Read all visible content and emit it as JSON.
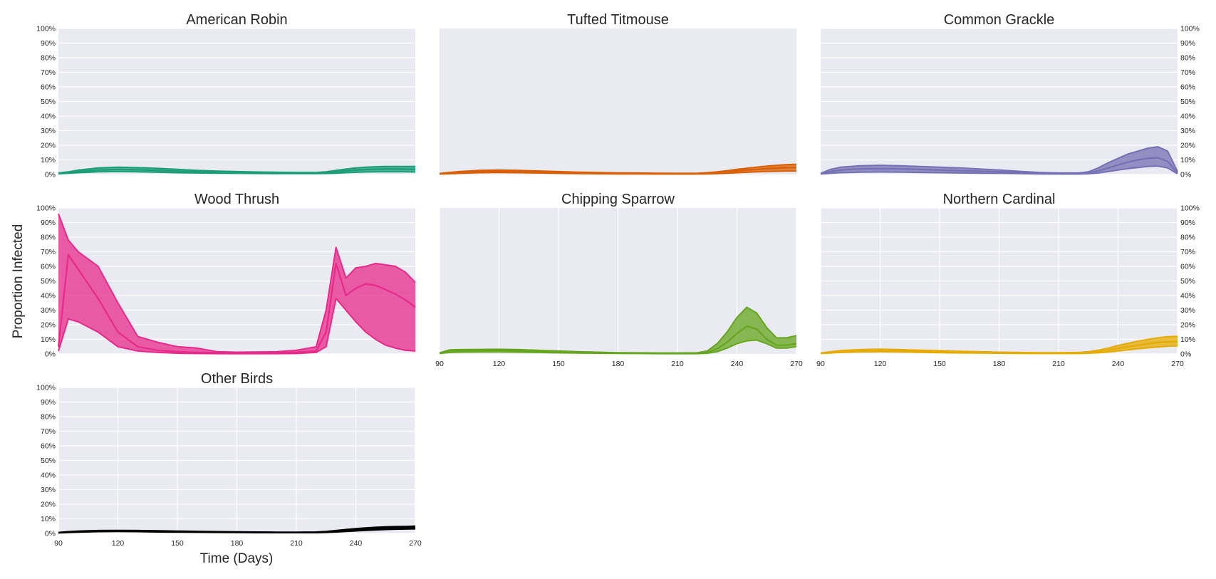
{
  "chart_data": {
    "type": "area",
    "ylabel": "Proportion Infected",
    "xlabel": "Time (Days)",
    "x_ticks": [
      90,
      120,
      150,
      180,
      210,
      240,
      270
    ],
    "y_ticks": [
      "0%",
      "10%",
      "20%",
      "30%",
      "40%",
      "50%",
      "60%",
      "70%",
      "80%",
      "90%",
      "100%"
    ],
    "xlim": [
      90,
      270
    ],
    "ylim": [
      0,
      1
    ],
    "grid": true,
    "x": [
      90,
      95,
      100,
      110,
      120,
      130,
      140,
      150,
      160,
      170,
      180,
      190,
      200,
      210,
      220,
      225,
      230,
      235,
      240,
      245,
      250,
      255,
      260,
      265,
      270
    ],
    "panels": [
      {
        "title": "American Robin",
        "color": "#1b9e77",
        "yticks_side": "left",
        "show_xticks": false,
        "lower": [
          0.005,
          0.008,
          0.012,
          0.018,
          0.02,
          0.018,
          0.015,
          0.012,
          0.01,
          0.009,
          0.008,
          0.007,
          0.006,
          0.006,
          0.006,
          0.007,
          0.009,
          0.012,
          0.015,
          0.017,
          0.018,
          0.018,
          0.018,
          0.018,
          0.017
        ],
        "median": [
          0.007,
          0.012,
          0.02,
          0.03,
          0.035,
          0.032,
          0.028,
          0.023,
          0.019,
          0.016,
          0.014,
          0.012,
          0.011,
          0.01,
          0.01,
          0.012,
          0.018,
          0.025,
          0.03,
          0.034,
          0.036,
          0.037,
          0.037,
          0.036,
          0.035
        ],
        "upper": [
          0.01,
          0.018,
          0.03,
          0.045,
          0.05,
          0.047,
          0.042,
          0.035,
          0.028,
          0.023,
          0.02,
          0.017,
          0.015,
          0.014,
          0.014,
          0.018,
          0.028,
          0.037,
          0.045,
          0.05,
          0.053,
          0.055,
          0.055,
          0.055,
          0.055
        ]
      },
      {
        "title": "Tufted Titmouse",
        "color": "#d95f02",
        "yticks_side": "none",
        "show_xticks": false,
        "lower": [
          0.003,
          0.005,
          0.008,
          0.012,
          0.013,
          0.012,
          0.01,
          0.008,
          0.006,
          0.005,
          0.004,
          0.004,
          0.003,
          0.003,
          0.003,
          0.004,
          0.006,
          0.009,
          0.012,
          0.015,
          0.018,
          0.02,
          0.022,
          0.023,
          0.024
        ],
        "median": [
          0.005,
          0.01,
          0.015,
          0.02,
          0.022,
          0.02,
          0.017,
          0.014,
          0.011,
          0.009,
          0.008,
          0.007,
          0.006,
          0.006,
          0.006,
          0.008,
          0.012,
          0.018,
          0.024,
          0.03,
          0.035,
          0.04,
          0.044,
          0.047,
          0.048
        ],
        "upper": [
          0.007,
          0.014,
          0.02,
          0.028,
          0.03,
          0.028,
          0.024,
          0.02,
          0.016,
          0.013,
          0.011,
          0.01,
          0.009,
          0.008,
          0.009,
          0.012,
          0.018,
          0.026,
          0.035,
          0.043,
          0.05,
          0.057,
          0.063,
          0.068,
          0.07
        ]
      },
      {
        "title": "Common Grackle",
        "color": "#7570b3",
        "yticks_side": "right",
        "show_xticks": false,
        "lower": [
          0.003,
          0.008,
          0.012,
          0.016,
          0.017,
          0.016,
          0.014,
          0.012,
          0.01,
          0.009,
          0.008,
          0.006,
          0.004,
          0.003,
          0.003,
          0.005,
          0.01,
          0.02,
          0.03,
          0.04,
          0.048,
          0.055,
          0.058,
          0.045,
          0.005
        ],
        "median": [
          0.005,
          0.02,
          0.03,
          0.038,
          0.04,
          0.038,
          0.034,
          0.03,
          0.026,
          0.022,
          0.018,
          0.014,
          0.009,
          0.006,
          0.006,
          0.01,
          0.025,
          0.045,
          0.065,
          0.085,
          0.1,
          0.11,
          0.115,
          0.09,
          0.01
        ],
        "upper": [
          0.008,
          0.035,
          0.05,
          0.06,
          0.063,
          0.06,
          0.055,
          0.05,
          0.045,
          0.038,
          0.03,
          0.022,
          0.014,
          0.01,
          0.01,
          0.018,
          0.045,
          0.08,
          0.11,
          0.14,
          0.16,
          0.18,
          0.19,
          0.16,
          0.02
        ]
      },
      {
        "title": "Wood Thrush",
        "color": "#e7298a",
        "yticks_side": "left",
        "show_xticks": false,
        "lower": [
          0.02,
          0.24,
          0.22,
          0.15,
          0.05,
          0.02,
          0.01,
          0.005,
          0.003,
          0.002,
          0.002,
          0.002,
          0.002,
          0.003,
          0.01,
          0.05,
          0.38,
          0.3,
          0.22,
          0.15,
          0.1,
          0.06,
          0.04,
          0.025,
          0.02
        ],
        "median": [
          0.05,
          0.68,
          0.58,
          0.38,
          0.15,
          0.05,
          0.025,
          0.015,
          0.01,
          0.008,
          0.007,
          0.007,
          0.008,
          0.01,
          0.02,
          0.15,
          0.62,
          0.4,
          0.45,
          0.48,
          0.47,
          0.44,
          0.41,
          0.37,
          0.32
        ],
        "upper": [
          0.96,
          0.78,
          0.7,
          0.6,
          0.35,
          0.12,
          0.08,
          0.05,
          0.04,
          0.015,
          0.012,
          0.013,
          0.015,
          0.025,
          0.05,
          0.3,
          0.73,
          0.52,
          0.59,
          0.6,
          0.62,
          0.61,
          0.6,
          0.56,
          0.49
        ]
      },
      {
        "title": "Chipping Sparrow",
        "color": "#66a61e",
        "yticks_side": "none",
        "show_xticks": true,
        "lower": [
          0.003,
          0.01,
          0.012,
          0.013,
          0.014,
          0.012,
          0.01,
          0.008,
          0.006,
          0.005,
          0.004,
          0.003,
          0.002,
          0.002,
          0.002,
          0.005,
          0.015,
          0.04,
          0.07,
          0.09,
          0.095,
          0.07,
          0.04,
          0.04,
          0.05
        ],
        "median": [
          0.005,
          0.018,
          0.02,
          0.021,
          0.022,
          0.02,
          0.016,
          0.013,
          0.01,
          0.008,
          0.006,
          0.005,
          0.004,
          0.004,
          0.005,
          0.01,
          0.035,
          0.08,
          0.14,
          0.19,
          0.17,
          0.1,
          0.06,
          0.06,
          0.07
        ],
        "upper": [
          0.008,
          0.028,
          0.03,
          0.031,
          0.032,
          0.03,
          0.025,
          0.02,
          0.015,
          0.012,
          0.009,
          0.008,
          0.007,
          0.007,
          0.008,
          0.02,
          0.07,
          0.15,
          0.25,
          0.32,
          0.28,
          0.18,
          0.11,
          0.11,
          0.125
        ]
      },
      {
        "title": "Northern Cardinal",
        "color": "#e6ab02",
        "yticks_side": "right",
        "show_xticks": true,
        "lower": [
          0.003,
          0.006,
          0.01,
          0.014,
          0.015,
          0.013,
          0.011,
          0.009,
          0.007,
          0.006,
          0.005,
          0.004,
          0.003,
          0.003,
          0.003,
          0.005,
          0.008,
          0.013,
          0.02,
          0.028,
          0.035,
          0.042,
          0.048,
          0.053,
          0.055
        ],
        "median": [
          0.005,
          0.01,
          0.016,
          0.022,
          0.024,
          0.021,
          0.018,
          0.015,
          0.012,
          0.01,
          0.008,
          0.007,
          0.006,
          0.006,
          0.006,
          0.009,
          0.016,
          0.026,
          0.038,
          0.05,
          0.06,
          0.07,
          0.078,
          0.083,
          0.085
        ],
        "upper": [
          0.007,
          0.015,
          0.023,
          0.03,
          0.033,
          0.03,
          0.026,
          0.022,
          0.018,
          0.015,
          0.012,
          0.01,
          0.009,
          0.009,
          0.01,
          0.015,
          0.026,
          0.04,
          0.058,
          0.073,
          0.088,
          0.1,
          0.11,
          0.118,
          0.12
        ]
      },
      {
        "title": "Other Birds",
        "color": "#000000",
        "yticks_side": "left",
        "show_xticks": true,
        "lower": [
          0.003,
          0.006,
          0.009,
          0.012,
          0.013,
          0.012,
          0.01,
          0.009,
          0.008,
          0.007,
          0.006,
          0.005,
          0.005,
          0.005,
          0.005,
          0.007,
          0.01,
          0.013,
          0.017,
          0.021,
          0.024,
          0.027,
          0.029,
          0.03,
          0.031
        ],
        "median": [
          0.005,
          0.009,
          0.012,
          0.016,
          0.017,
          0.016,
          0.014,
          0.012,
          0.011,
          0.009,
          0.008,
          0.008,
          0.007,
          0.007,
          0.007,
          0.01,
          0.015,
          0.02,
          0.025,
          0.029,
          0.033,
          0.036,
          0.038,
          0.039,
          0.04
        ],
        "upper": [
          0.007,
          0.012,
          0.016,
          0.02,
          0.021,
          0.02,
          0.018,
          0.016,
          0.014,
          0.012,
          0.011,
          0.01,
          0.009,
          0.009,
          0.01,
          0.013,
          0.02,
          0.027,
          0.033,
          0.038,
          0.042,
          0.045,
          0.047,
          0.048,
          0.05
        ]
      }
    ]
  }
}
